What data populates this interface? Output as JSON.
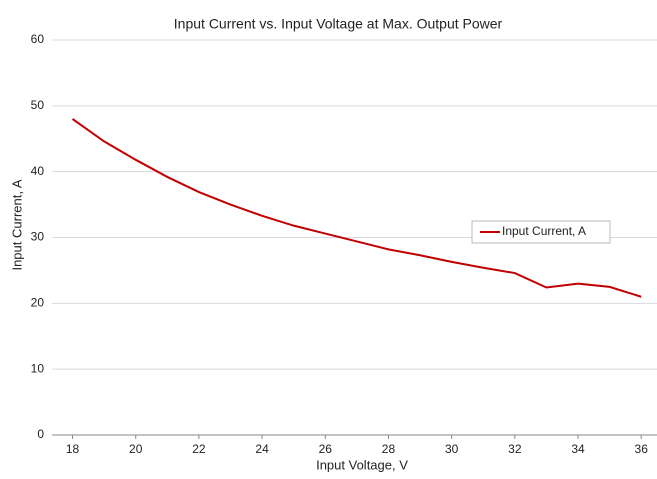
{
  "chart_data": {
    "type": "line",
    "title": "Input Current vs. Input Voltage at Max. Output Power",
    "x_label": "Input Voltage, V",
    "y_label": "Input Current, A",
    "x": [
      18,
      19,
      20,
      21,
      22,
      23,
      24,
      25,
      26,
      27,
      28,
      29,
      30,
      31,
      32,
      33,
      34,
      35,
      36
    ],
    "series": [
      {
        "name": "Input Current, A",
        "color": "#c00000",
        "values": [
          48,
          44.6,
          41.8,
          39.2,
          36.9,
          35.0,
          33.3,
          31.8,
          30.6,
          29.4,
          28.2,
          27.3,
          26.3,
          25.4,
          24.6,
          22.4,
          23.0,
          22.5,
          21.0
        ]
      }
    ],
    "xlim": [
      17.35,
      36.5
    ],
    "xticks": [
      18,
      20,
      22,
      24,
      26,
      28,
      30,
      32,
      34,
      36
    ],
    "ylim": [
      0,
      60
    ],
    "yticks": [
      0,
      10,
      20,
      30,
      40,
      50,
      60
    ],
    "grid": true,
    "legend": "right"
  }
}
